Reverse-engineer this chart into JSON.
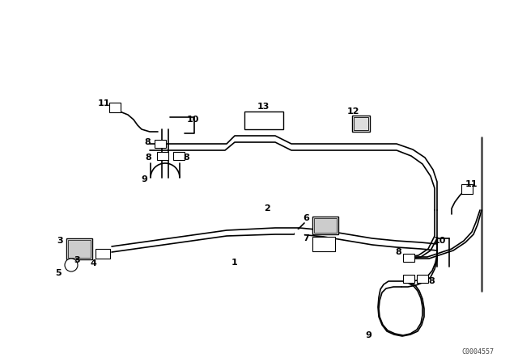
{
  "background_color": "#ffffff",
  "line_color": "#000000",
  "watermark": "C0004557",
  "figsize": [
    6.4,
    4.48
  ],
  "dpi": 100
}
